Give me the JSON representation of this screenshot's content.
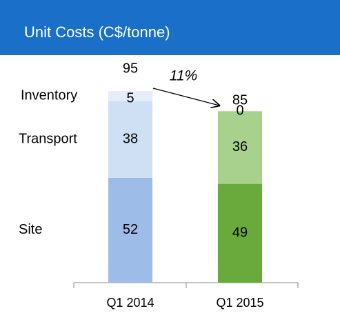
{
  "chart_data": {
    "type": "stacked_bar",
    "title": "Unit Costs (C$/tonne)",
    "categories": [
      "Q1 2014",
      "Q1 2015"
    ],
    "series": [
      {
        "name": "Site",
        "colors": [
          "#9dbde8",
          "#6aaa3c"
        ],
        "values": [
          52,
          49
        ]
      },
      {
        "name": "Transport",
        "colors": [
          "#cfe0f4",
          "#a9d18e"
        ],
        "values": [
          38,
          36
        ]
      },
      {
        "name": "Inventory",
        "colors": [
          "#e4edf8",
          "#d5e8c6"
        ],
        "values": [
          5,
          0
        ]
      }
    ],
    "totals": [
      95,
      85
    ],
    "annotation": "11%"
  }
}
